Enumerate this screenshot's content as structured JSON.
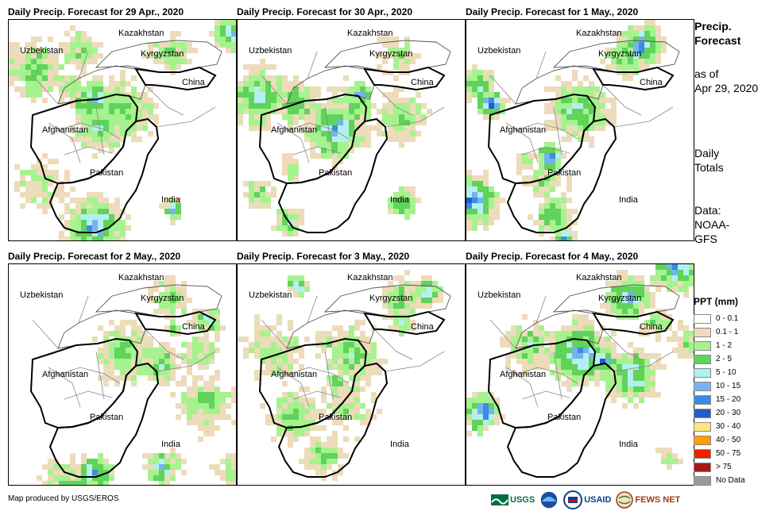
{
  "panels": [
    {
      "title": "Daily Precip. Forecast for 29 Apr., 2020",
      "seed": 11,
      "intensity": 0.55
    },
    {
      "title": "Daily Precip. Forecast for 30 Apr., 2020",
      "seed": 23,
      "intensity": 0.45
    },
    {
      "title": "Daily Precip. Forecast for 1 May., 2020",
      "seed": 37,
      "intensity": 0.65
    },
    {
      "title": "Daily Precip. Forecast for 2 May., 2020",
      "seed": 41,
      "intensity": 0.5
    },
    {
      "title": "Daily Precip. Forecast for 3 May., 2020",
      "seed": 53,
      "intensity": 0.55
    },
    {
      "title": "Daily Precip. Forecast for 4 May., 2020",
      "seed": 67,
      "intensity": 0.85
    }
  ],
  "country_labels": {
    "kazakhstan": "Kazakhstan",
    "uzbekistan": "Uzbekistan",
    "kyrgyzstan": "Kyrgyzstan",
    "china": "China",
    "afghanistan": "Afghanistan",
    "pakistan": "Pakistan",
    "india": "India"
  },
  "side": {
    "title_line1": "Precip.",
    "title_line2": "Forecast",
    "asof_line1": "as of",
    "asof_line2": "Apr 29, 2020",
    "daily_line1": "Daily",
    "daily_line2": "Totals",
    "data_line1": "Data:",
    "data_line2": "NOAA-",
    "data_line3": "GFS"
  },
  "legend": {
    "title": "PPT (mm)",
    "items": [
      {
        "label": "0 - 0.1",
        "color": "#ffffff"
      },
      {
        "label": "0.1 - 1",
        "color": "#ecdcb9"
      },
      {
        "label": "1 - 2",
        "color": "#a6f28f"
      },
      {
        "label": "2 - 5",
        "color": "#5fd35a"
      },
      {
        "label": "5 - 10",
        "color": "#b4f0f0"
      },
      {
        "label": "10 - 15",
        "color": "#74b4ec"
      },
      {
        "label": "15 - 20",
        "color": "#3c8be0"
      },
      {
        "label": "20 - 30",
        "color": "#1f5ccc"
      },
      {
        "label": "30 - 40",
        "color": "#ffe680"
      },
      {
        "label": "40 - 50",
        "color": "#ffa000"
      },
      {
        "label": "50 - 75",
        "color": "#ee2200"
      },
      {
        "label": "> 75",
        "color": "#a81818"
      },
      {
        "label": "No Data",
        "color": "#9a9a9a"
      }
    ]
  },
  "credit": "Map produced by USGS/EROS",
  "logos": {
    "usgs": "USGS",
    "usaid": "USAID",
    "fewsnet": "FEWS NET"
  }
}
